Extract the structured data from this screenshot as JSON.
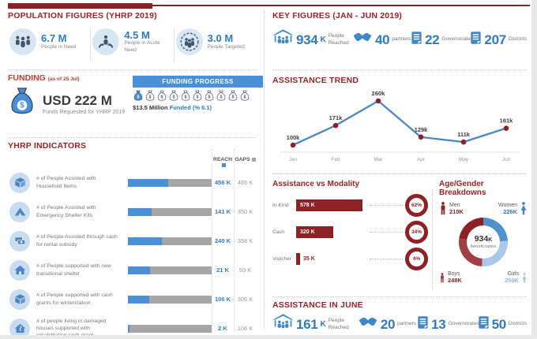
{
  "population": {
    "title": "POPULATION FIGURES (YHRP 2019)",
    "stats": [
      {
        "value": "6.7 M",
        "label": "People in Need"
      },
      {
        "value": "4.5 M",
        "label": "People in Acute Need"
      },
      {
        "value": "3.0 M",
        "label": "People Targeted"
      }
    ]
  },
  "funding": {
    "title": "FUNDING",
    "as_of": "(as of 25 Jul)",
    "amount": "USD 222 M",
    "amount_label": "Funds Requested for YHRP 2019",
    "progress_title": "FUNDING PROGRESS",
    "bags_total": 10,
    "bags_filled": 1,
    "funded_amount": "$13.5 Million",
    "funded_label": "Funded (% 6.1)"
  },
  "indicators": {
    "title": "YHRP INDICATORS",
    "reach_header": "REACH",
    "gaps_header": "GAPS",
    "rows": [
      {
        "label": "# of People Assisted with Household Items",
        "reach": 456,
        "gaps": 485,
        "reach_label": "456 K",
        "gaps_label": "485 K"
      },
      {
        "label": "# of People Assisted with Emergency Shelter Kits",
        "reach": 141,
        "gaps": 350,
        "reach_label": "141 K",
        "gaps_label": "350 K"
      },
      {
        "label": "# of People Assisted through cash for rental subsidy",
        "reach": 240,
        "gaps": 358,
        "reach_label": "240 K",
        "gaps_label": "358 K"
      },
      {
        "label": "# of People supported with new transitional shelter",
        "reach": 21,
        "gaps": 59,
        "reach_label": "21 K",
        "gaps_label": "59 K"
      },
      {
        "label": "# of People supported with cash grants for winterization",
        "reach": 106,
        "gaps": 306,
        "reach_label": "106 K",
        "gaps_label": "306 K"
      },
      {
        "label": "# of people living in damaged houses supported with rehabilitation cash grant",
        "reach": 2,
        "gaps": 106,
        "reach_label": "2 K",
        "gaps_label": "106 K"
      }
    ]
  },
  "key_figures": {
    "title": "KEY FIGURES (JAN - JUN 2019)",
    "stats": [
      {
        "value": "934",
        "suffix": "K",
        "label": "People Reached"
      },
      {
        "value": "40",
        "label": "partners"
      },
      {
        "value": "22",
        "label": "Governorates"
      },
      {
        "value": "207",
        "label": "Districts"
      }
    ]
  },
  "trend": {
    "title": "ASSISTANCE TREND",
    "months": [
      "Jan",
      "Feb",
      "Mar",
      "Apr",
      "May",
      "Jun"
    ],
    "values": [
      100,
      171,
      260,
      129,
      111,
      161
    ],
    "labels": [
      "100k",
      "171k",
      "260k",
      "129k",
      "111k",
      "161k"
    ]
  },
  "modality": {
    "title": "Assistance vs Modality",
    "rows": [
      {
        "label": "In-Kind",
        "value": 578,
        "value_label": "578 K",
        "percent": "62%"
      },
      {
        "label": "Cash",
        "value": 320,
        "value_label": "320 K",
        "percent": "34%"
      },
      {
        "label": "Voucher",
        "value": 35,
        "value_label": "35 K",
        "percent": "4%"
      }
    ]
  },
  "age_gender": {
    "title": "Age/Gender Breakdowns",
    "groups": [
      {
        "label": "Men",
        "value": 210,
        "value_label": "210K",
        "color": "#8e2125"
      },
      {
        "label": "Women",
        "value": 226,
        "value_label": "226K",
        "color": "#4f91cf"
      },
      {
        "label": "Boys",
        "value": 248,
        "value_label": "248K",
        "color": "#a04045"
      },
      {
        "label": "Girls",
        "value": 250,
        "value_label": "250K",
        "color": "#a9c7e8"
      }
    ],
    "center_value": "934",
    "center_suffix": "K",
    "center_label": "beneficiaries"
  },
  "june": {
    "title": "ASSISTANCE IN JUNE",
    "stats": [
      {
        "value": "161",
        "suffix": "K",
        "label": "People Reached"
      },
      {
        "value": "20",
        "label": "partners"
      },
      {
        "value": "13",
        "label": "Governorates"
      },
      {
        "value": "50",
        "label": "Districts"
      }
    ]
  },
  "colors": {
    "dark_red": "#8e2125",
    "heading_red": "#9e2227",
    "funding_red": "#c43d2e",
    "blue": "#4a90d9",
    "value_blue": "#2e7bc4",
    "gray_bar": "#a6a6a6"
  },
  "chart_data": [
    {
      "type": "line",
      "title": "ASSISTANCE TREND",
      "x": [
        "Jan",
        "Feb",
        "Mar",
        "Apr",
        "May",
        "Jun"
      ],
      "values_thousands": [
        100,
        171,
        260,
        129,
        111,
        161
      ],
      "point_labels": [
        "100k",
        "171k",
        "260k",
        "129k",
        "111k",
        "161k"
      ],
      "line_color": "#4a86c8",
      "marker_color": "#8e2125",
      "grid": false,
      "legend": "none",
      "ylim_thousands": [
        90,
        280
      ]
    },
    {
      "type": "bar",
      "title": "Assistance vs Modality",
      "categories": [
        "In-Kind",
        "Cash",
        "Voucher"
      ],
      "values_thousands": [
        578,
        320,
        35
      ],
      "value_labels": [
        "578 K",
        "320 K",
        "35 K"
      ],
      "percent_of_total": [
        62,
        34,
        4
      ],
      "bar_color": "#8e2125",
      "orientation": "horizontal"
    },
    {
      "type": "pie",
      "title": "Age/Gender Breakdowns",
      "categories": [
        "Women",
        "Girls",
        "Boys",
        "Men"
      ],
      "values_thousands": [
        226,
        250,
        248,
        210
      ],
      "colors": [
        "#4f91cf",
        "#a9c7e8",
        "#a04045",
        "#8e2125"
      ],
      "donut": true,
      "center_label": "934 K beneficiaries"
    },
    {
      "type": "bar",
      "title": "YHRP INDICATORS (thousands)",
      "categories": [
        "Household Items",
        "Emergency Shelter Kits",
        "Cash for rental subsidy",
        "New transitional shelter",
        "Cash grants for winterization",
        "Rehabilitation cash grant"
      ],
      "series": [
        {
          "name": "REACH",
          "values_thousands": [
            456,
            141,
            240,
            21,
            106,
            2
          ],
          "color": "#4a90d9"
        },
        {
          "name": "GAPS",
          "values_thousands": [
            485,
            350,
            358,
            59,
            306,
            106
          ],
          "color": "#a6a6a6"
        }
      ],
      "orientation": "horizontal",
      "stacked": true
    }
  ]
}
